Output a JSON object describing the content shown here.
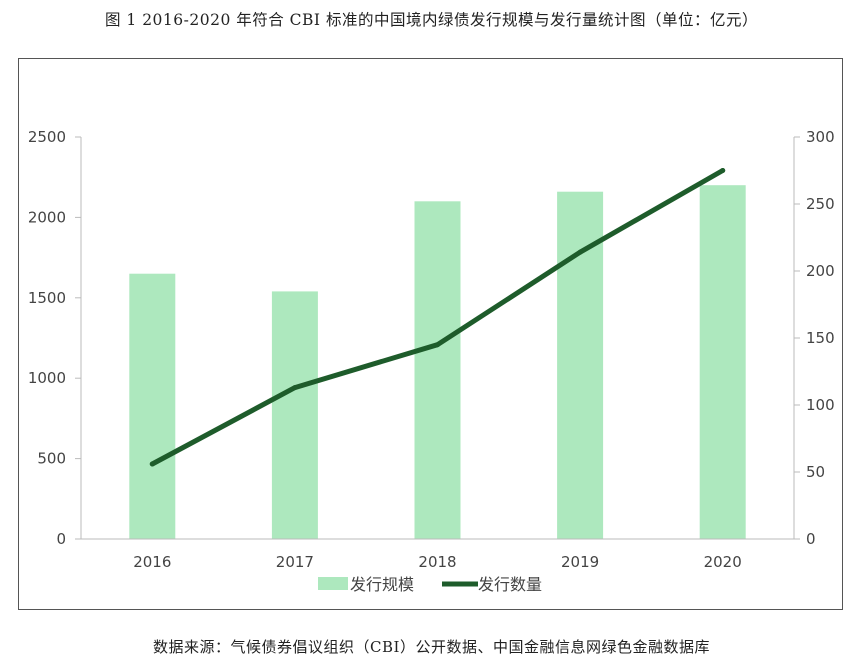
{
  "title": "图 1  2016-2020 年符合 CBI 标准的中国境内绿债发行规模与发行量统计图（单位：亿元）",
  "source": "数据来源：气候债券倡议组织（CBI）公开数据、中国金融信息网绿色金融数据库",
  "colors": {
    "bar": "#ade8be",
    "line": "#1e5c2b",
    "axis": "#bbbbbb"
  },
  "chart_data": {
    "type": "bar+line",
    "categories": [
      "2016",
      "2017",
      "2018",
      "2019",
      "2020"
    ],
    "series": [
      {
        "name": "发行规模",
        "type": "bar",
        "axis": "left",
        "values": [
          1650,
          1540,
          2100,
          2160,
          2200
        ]
      },
      {
        "name": "发行数量",
        "type": "line",
        "axis": "right",
        "values": [
          56,
          113,
          145,
          214,
          275
        ]
      }
    ],
    "y_left": {
      "min": 0,
      "max": 2500,
      "ticks": [
        "0",
        "500",
        "1000",
        "1500",
        "2000",
        "2500"
      ]
    },
    "y_right": {
      "min": 0,
      "max": 300,
      "ticks": [
        "0",
        "50",
        "100",
        "150",
        "200",
        "250",
        "300"
      ]
    },
    "legend_position": "bottom",
    "grid": false
  }
}
